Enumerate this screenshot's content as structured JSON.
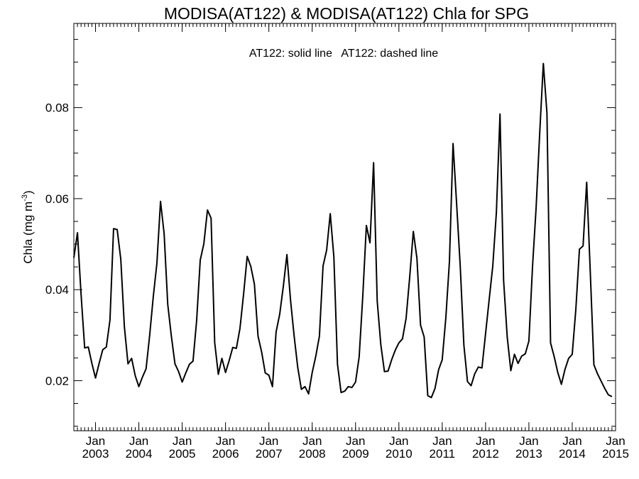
{
  "chart_data": {
    "type": "line",
    "title": "MODISA(AT122) & MODISA(AT122)  Chla for SPG",
    "annotation": "AT122: solid line   AT122: dashed line",
    "ylabel": "Chla (mg m",
    "ylabel_sup": "-3",
    "ylabel_close": ")",
    "ylim": [
      0.009,
      0.0985
    ],
    "yticks": [
      {
        "value": 0.02,
        "label": "0.02"
      },
      {
        "value": 0.04,
        "label": "0.04"
      },
      {
        "value": 0.06,
        "label": "0.06"
      },
      {
        "value": 0.08,
        "label": "0.08"
      }
    ],
    "xlim": [
      "2002-07-01",
      "2015-01-01"
    ],
    "xticks": [
      {
        "date": "2003-01-01",
        "month": "Jan",
        "year": "2003"
      },
      {
        "date": "2004-01-01",
        "month": "Jan",
        "year": "2004"
      },
      {
        "date": "2005-01-01",
        "month": "Jan",
        "year": "2005"
      },
      {
        "date": "2006-01-01",
        "month": "Jan",
        "year": "2006"
      },
      {
        "date": "2007-01-01",
        "month": "Jan",
        "year": "2007"
      },
      {
        "date": "2008-01-01",
        "month": "Jan",
        "year": "2008"
      },
      {
        "date": "2009-01-01",
        "month": "Jan",
        "year": "2009"
      },
      {
        "date": "2010-01-01",
        "month": "Jan",
        "year": "2010"
      },
      {
        "date": "2011-01-01",
        "month": "Jan",
        "year": "2011"
      },
      {
        "date": "2012-01-01",
        "month": "Jan",
        "year": "2012"
      },
      {
        "date": "2013-01-01",
        "month": "Jan",
        "year": "2013"
      },
      {
        "date": "2014-01-01",
        "month": "Jan",
        "year": "2014"
      },
      {
        "date": "2015-01-01",
        "month": "Jan",
        "year": "2015"
      }
    ],
    "grid": false,
    "legend": "none",
    "series": [
      {
        "line_style": "solid",
        "color": "#000000",
        "x": [
          "2002-07",
          "2002-08",
          "2002-09",
          "2002-10",
          "2002-11",
          "2002-12",
          "2003-01",
          "2003-02",
          "2003-03",
          "2003-04",
          "2003-05",
          "2003-06",
          "2003-07",
          "2003-08",
          "2003-09",
          "2003-10",
          "2003-11",
          "2003-12",
          "2004-01",
          "2004-02",
          "2004-03",
          "2004-04",
          "2004-05",
          "2004-06",
          "2004-07",
          "2004-08",
          "2004-09",
          "2004-10",
          "2004-11",
          "2004-12",
          "2005-01",
          "2005-02",
          "2005-03",
          "2005-04",
          "2005-05",
          "2005-06",
          "2005-07",
          "2005-08",
          "2005-09",
          "2005-10",
          "2005-11",
          "2005-12",
          "2006-01",
          "2006-02",
          "2006-03",
          "2006-04",
          "2006-05",
          "2006-06",
          "2006-07",
          "2006-08",
          "2006-09",
          "2006-10",
          "2006-11",
          "2006-12",
          "2007-01",
          "2007-02",
          "2007-03",
          "2007-04",
          "2007-05",
          "2007-06",
          "2007-07",
          "2007-08",
          "2007-09",
          "2007-10",
          "2007-11",
          "2007-12",
          "2008-01",
          "2008-02",
          "2008-03",
          "2008-04",
          "2008-05",
          "2008-06",
          "2008-07",
          "2008-08",
          "2008-09",
          "2008-10",
          "2008-11",
          "2008-12",
          "2009-01",
          "2009-02",
          "2009-03",
          "2009-04",
          "2009-05",
          "2009-06",
          "2009-07",
          "2009-08",
          "2009-09",
          "2009-10",
          "2009-11",
          "2009-12",
          "2010-01",
          "2010-02",
          "2010-03",
          "2010-04",
          "2010-05",
          "2010-06",
          "2010-07",
          "2010-08",
          "2010-09",
          "2010-10",
          "2010-11",
          "2010-12",
          "2011-01",
          "2011-02",
          "2011-03",
          "2011-04",
          "2011-05",
          "2011-06",
          "2011-07",
          "2011-08",
          "2011-09",
          "2011-10",
          "2011-11",
          "2011-12",
          "2012-01",
          "2012-02",
          "2012-03",
          "2012-04",
          "2012-05",
          "2012-06",
          "2012-07",
          "2012-08",
          "2012-09",
          "2012-10",
          "2012-11",
          "2012-12",
          "2013-01",
          "2013-02",
          "2013-03",
          "2013-04",
          "2013-05",
          "2013-06",
          "2013-07",
          "2013-08",
          "2013-09",
          "2013-10",
          "2013-11",
          "2013-12",
          "2014-01",
          "2014-02",
          "2014-03",
          "2014-04",
          "2014-05",
          "2014-06",
          "2014-07",
          "2014-08",
          "2014-09",
          "2014-10",
          "2014-11",
          "2014-12"
        ],
        "y": [
          0.047,
          0.0525,
          0.039,
          0.0272,
          0.0274,
          0.0238,
          0.0206,
          0.0238,
          0.0268,
          0.0274,
          0.0333,
          0.0534,
          0.0532,
          0.0467,
          0.0318,
          0.0237,
          0.0249,
          0.0211,
          0.0187,
          0.0208,
          0.0226,
          0.03,
          0.0385,
          0.0458,
          0.0594,
          0.0523,
          0.0368,
          0.0298,
          0.0237,
          0.022,
          0.0197,
          0.0217,
          0.0236,
          0.0243,
          0.0332,
          0.0465,
          0.0501,
          0.0575,
          0.0557,
          0.0284,
          0.0214,
          0.0249,
          0.0218,
          0.0244,
          0.0273,
          0.0271,
          0.0315,
          0.039,
          0.0473,
          0.0451,
          0.0412,
          0.0298,
          0.0263,
          0.0217,
          0.0212,
          0.0187,
          0.0307,
          0.0346,
          0.0407,
          0.0477,
          0.0377,
          0.0298,
          0.0229,
          0.0181,
          0.0187,
          0.0171,
          0.0218,
          0.0254,
          0.0298,
          0.0452,
          0.0487,
          0.0567,
          0.0472,
          0.0236,
          0.0174,
          0.0177,
          0.0187,
          0.0185,
          0.0197,
          0.0252,
          0.0385,
          0.0541,
          0.0503,
          0.0679,
          0.0375,
          0.0279,
          0.022,
          0.0221,
          0.0246,
          0.0267,
          0.0283,
          0.0292,
          0.0337,
          0.0428,
          0.0528,
          0.0469,
          0.0322,
          0.0296,
          0.0167,
          0.0163,
          0.0183,
          0.0224,
          0.0246,
          0.0338,
          0.0462,
          0.0721,
          0.0587,
          0.045,
          0.0278,
          0.0198,
          0.0189,
          0.0215,
          0.023,
          0.0228,
          0.0303,
          0.0378,
          0.0452,
          0.057,
          0.0786,
          0.042,
          0.0296,
          0.0222,
          0.0258,
          0.0238,
          0.0254,
          0.0259,
          0.0287,
          0.045,
          0.058,
          0.0745,
          0.0897,
          0.0788,
          0.0283,
          0.0253,
          0.0218,
          0.0192,
          0.0225,
          0.0249,
          0.0258,
          0.0357,
          0.0489,
          0.0496,
          0.0636,
          0.0438,
          0.0235,
          0.0215,
          0.0199,
          0.0183,
          0.0169,
          0.0165
        ]
      }
    ]
  }
}
